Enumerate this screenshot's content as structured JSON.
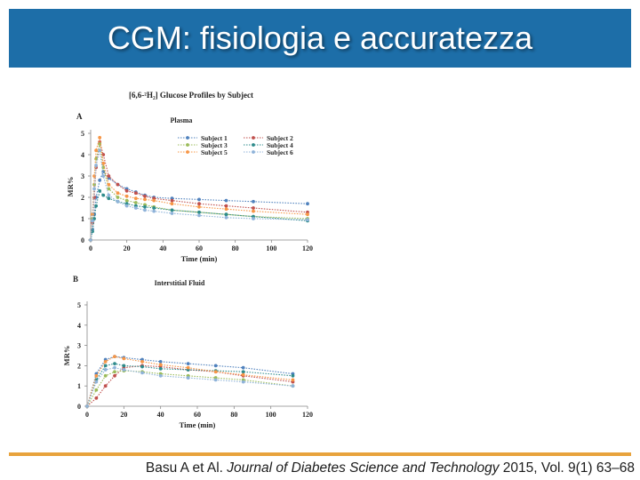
{
  "slide": {
    "title": "CGM: fisiologia e accuratezza",
    "citation": {
      "authors": "Basu A et Al.",
      "journal": "Journal of Diabetes Science and Technology",
      "details": "2015, Vol. 9(1) 63–68"
    },
    "colors": {
      "title_bar": "#1d6ea8",
      "footer_line": "#e8a33c"
    }
  },
  "figure_title": "[6,6-²H₂] Glucose Profiles by Subject",
  "chart_data": [
    {
      "type": "line",
      "panel_letter": "A",
      "title": "Plasma",
      "xlabel": "Time (min)",
      "ylabel": "MR%",
      "xlim": [
        0,
        120
      ],
      "ylim": [
        0,
        5
      ],
      "xticks": [
        0,
        20,
        40,
        60,
        80,
        100,
        120
      ],
      "yticks": [
        0,
        1,
        2,
        3,
        4,
        5
      ],
      "grid": false,
      "legend_position": "top-right",
      "series": [
        {
          "name": "Subject 1",
          "color": "#4f81bd",
          "x": [
            0,
            1,
            2,
            3,
            5,
            7,
            10,
            15,
            20,
            25,
            30,
            35,
            45,
            60,
            75,
            90,
            120
          ],
          "y": [
            0,
            0.5,
            1.2,
            2.0,
            2.8,
            3.2,
            2.9,
            2.6,
            2.4,
            2.25,
            2.1,
            2.0,
            1.95,
            1.9,
            1.85,
            1.8,
            1.7
          ]
        },
        {
          "name": "Subject 2",
          "color": "#c0504d",
          "x": [
            0,
            1,
            2,
            3,
            5,
            7,
            10,
            15,
            20,
            25,
            30,
            35,
            45,
            60,
            75,
            90,
            120
          ],
          "y": [
            0,
            0.8,
            2.0,
            3.4,
            4.6,
            4.0,
            3.0,
            2.6,
            2.3,
            2.2,
            2.05,
            1.95,
            1.85,
            1.7,
            1.6,
            1.5,
            1.3
          ]
        },
        {
          "name": "Subject 3",
          "color": "#9bbb59",
          "x": [
            0,
            1,
            2,
            3,
            5,
            7,
            10,
            15,
            20,
            25,
            30,
            35,
            45,
            60,
            75,
            90,
            120
          ],
          "y": [
            0,
            1.0,
            2.6,
            3.8,
            4.5,
            3.4,
            2.4,
            2.0,
            1.85,
            1.75,
            1.65,
            1.55,
            1.4,
            1.3,
            1.2,
            1.1,
            1.0
          ]
        },
        {
          "name": "Subject 4",
          "color": "#2e8b8b",
          "x": [
            0,
            1,
            2,
            3,
            5,
            7,
            10,
            15,
            20,
            25,
            30,
            35,
            45,
            60,
            75,
            90,
            120
          ],
          "y": [
            0,
            0.4,
            1.0,
            1.6,
            2.3,
            2.1,
            1.95,
            1.8,
            1.7,
            1.6,
            1.55,
            1.5,
            1.4,
            1.3,
            1.2,
            1.1,
            0.9
          ]
        },
        {
          "name": "Subject 5",
          "color": "#f79646",
          "x": [
            0,
            1,
            2,
            3,
            5,
            7,
            10,
            15,
            20,
            25,
            30,
            35,
            45,
            60,
            75,
            90,
            120
          ],
          "y": [
            0,
            1.2,
            3.0,
            4.2,
            4.8,
            3.6,
            2.6,
            2.2,
            2.05,
            1.95,
            1.9,
            1.85,
            1.7,
            1.55,
            1.45,
            1.35,
            1.2
          ]
        },
        {
          "name": "Subject 6",
          "color": "#8fb3d9",
          "x": [
            0,
            1,
            2,
            3,
            5,
            7,
            10,
            15,
            20,
            25,
            30,
            35,
            45,
            60,
            75,
            90,
            120
          ],
          "y": [
            0,
            0.9,
            2.4,
            3.5,
            4.2,
            3.0,
            2.1,
            1.8,
            1.6,
            1.5,
            1.4,
            1.35,
            1.25,
            1.15,
            1.05,
            1.0,
            0.95
          ]
        }
      ]
    },
    {
      "type": "line",
      "panel_letter": "B",
      "title": "Interstitial Fluid",
      "xlabel": "Time (min)",
      "ylabel": "MR%",
      "xlim": [
        0,
        120
      ],
      "ylim": [
        0,
        5
      ],
      "xticks": [
        0,
        20,
        40,
        60,
        80,
        100,
        120
      ],
      "yticks": [
        0,
        1,
        2,
        3,
        4,
        5
      ],
      "grid": false,
      "series": [
        {
          "name": "Subject 1",
          "color": "#4f81bd",
          "x": [
            0,
            5,
            10,
            15,
            20,
            30,
            40,
            55,
            70,
            85,
            112
          ],
          "y": [
            0,
            1.6,
            2.3,
            2.45,
            2.4,
            2.3,
            2.2,
            2.1,
            2.0,
            1.9,
            1.6
          ]
        },
        {
          "name": "Subject 2",
          "color": "#c0504d",
          "x": [
            0,
            5,
            10,
            15,
            20,
            30,
            40,
            55,
            70,
            85,
            112
          ],
          "y": [
            0,
            0.4,
            1.0,
            1.5,
            1.9,
            2.0,
            1.95,
            1.8,
            1.7,
            1.5,
            1.2
          ]
        },
        {
          "name": "Subject 3",
          "color": "#9bbb59",
          "x": [
            0,
            5,
            10,
            15,
            20,
            30,
            40,
            55,
            70,
            85,
            112
          ],
          "y": [
            0,
            0.8,
            1.5,
            1.7,
            1.75,
            1.7,
            1.6,
            1.5,
            1.4,
            1.3,
            1.0
          ]
        },
        {
          "name": "Subject 4",
          "color": "#2e8b8b",
          "x": [
            0,
            5,
            10,
            15,
            20,
            30,
            40,
            55,
            70,
            85,
            112
          ],
          "y": [
            0,
            1.3,
            2.0,
            2.1,
            2.0,
            1.95,
            1.85,
            1.8,
            1.75,
            1.7,
            1.5
          ]
        },
        {
          "name": "Subject 5",
          "color": "#f79646",
          "x": [
            0,
            5,
            10,
            15,
            20,
            30,
            40,
            55,
            70,
            85,
            112
          ],
          "y": [
            0,
            1.5,
            2.2,
            2.45,
            2.35,
            2.2,
            2.05,
            1.9,
            1.7,
            1.55,
            1.3
          ]
        },
        {
          "name": "Subject 6",
          "color": "#8fb3d9",
          "x": [
            0,
            5,
            10,
            15,
            20,
            30,
            40,
            55,
            70,
            85,
            112
          ],
          "y": [
            0,
            1.2,
            1.8,
            1.9,
            1.8,
            1.65,
            1.5,
            1.4,
            1.3,
            1.2,
            1.0
          ]
        }
      ]
    }
  ]
}
